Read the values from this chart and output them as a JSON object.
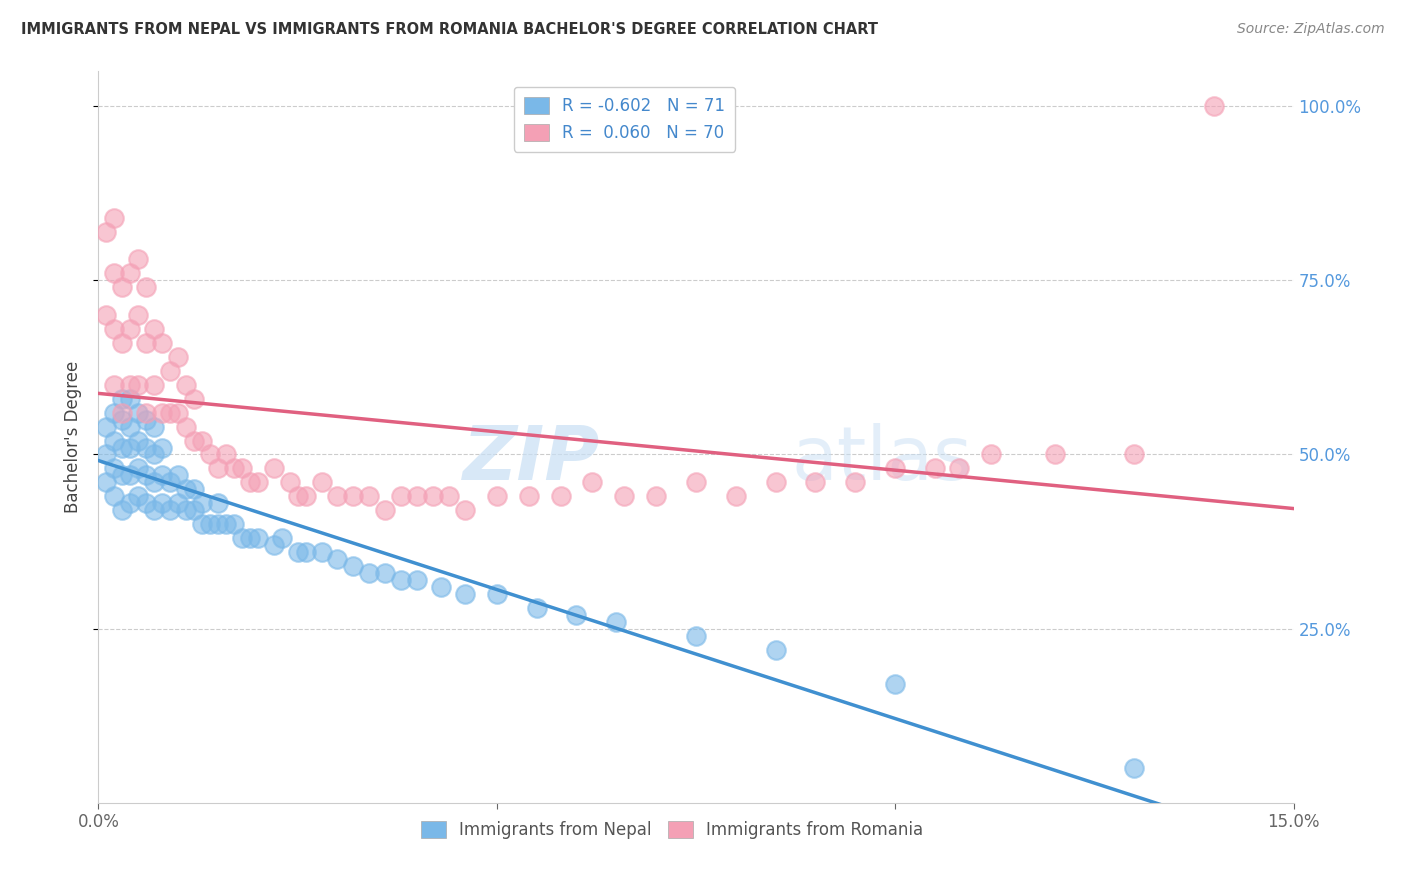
{
  "title": "IMMIGRANTS FROM NEPAL VS IMMIGRANTS FROM ROMANIA BACHELOR'S DEGREE CORRELATION CHART",
  "source": "Source: ZipAtlas.com",
  "ylabel": "Bachelor's Degree",
  "xlim": [
    0.0,
    0.15
  ],
  "ylim": [
    0.0,
    1.05
  ],
  "nepal_color": "#7AB8E8",
  "romania_color": "#F4A0B5",
  "nepal_R": "-0.602",
  "nepal_N": "71",
  "romania_R": "0.060",
  "romania_N": "70",
  "nepal_line_color": "#4090D0",
  "romania_line_color": "#E06080",
  "watermark_zip": "ZIP",
  "watermark_atlas": "atlas",
  "nepal_x": [
    0.001,
    0.001,
    0.001,
    0.002,
    0.002,
    0.002,
    0.002,
    0.003,
    0.003,
    0.003,
    0.003,
    0.003,
    0.004,
    0.004,
    0.004,
    0.004,
    0.004,
    0.005,
    0.005,
    0.005,
    0.005,
    0.006,
    0.006,
    0.006,
    0.006,
    0.007,
    0.007,
    0.007,
    0.007,
    0.008,
    0.008,
    0.008,
    0.009,
    0.009,
    0.01,
    0.01,
    0.011,
    0.011,
    0.012,
    0.012,
    0.013,
    0.013,
    0.014,
    0.015,
    0.015,
    0.016,
    0.017,
    0.018,
    0.019,
    0.02,
    0.022,
    0.023,
    0.025,
    0.026,
    0.028,
    0.03,
    0.032,
    0.034,
    0.036,
    0.038,
    0.04,
    0.043,
    0.046,
    0.05,
    0.055,
    0.06,
    0.065,
    0.075,
    0.085,
    0.1,
    0.13
  ],
  "nepal_y": [
    0.46,
    0.5,
    0.54,
    0.44,
    0.48,
    0.52,
    0.56,
    0.42,
    0.47,
    0.51,
    0.55,
    0.58,
    0.43,
    0.47,
    0.51,
    0.54,
    0.58,
    0.44,
    0.48,
    0.52,
    0.56,
    0.43,
    0.47,
    0.51,
    0.55,
    0.42,
    0.46,
    0.5,
    0.54,
    0.43,
    0.47,
    0.51,
    0.42,
    0.46,
    0.43,
    0.47,
    0.42,
    0.45,
    0.42,
    0.45,
    0.4,
    0.43,
    0.4,
    0.4,
    0.43,
    0.4,
    0.4,
    0.38,
    0.38,
    0.38,
    0.37,
    0.38,
    0.36,
    0.36,
    0.36,
    0.35,
    0.34,
    0.33,
    0.33,
    0.32,
    0.32,
    0.31,
    0.3,
    0.3,
    0.28,
    0.27,
    0.26,
    0.24,
    0.22,
    0.17,
    0.05
  ],
  "romania_x": [
    0.001,
    0.001,
    0.002,
    0.002,
    0.002,
    0.002,
    0.003,
    0.003,
    0.003,
    0.004,
    0.004,
    0.004,
    0.005,
    0.005,
    0.005,
    0.006,
    0.006,
    0.006,
    0.007,
    0.007,
    0.008,
    0.008,
    0.009,
    0.009,
    0.01,
    0.01,
    0.011,
    0.011,
    0.012,
    0.012,
    0.013,
    0.014,
    0.015,
    0.016,
    0.017,
    0.018,
    0.019,
    0.02,
    0.022,
    0.024,
    0.025,
    0.026,
    0.028,
    0.03,
    0.032,
    0.034,
    0.036,
    0.038,
    0.04,
    0.042,
    0.044,
    0.046,
    0.05,
    0.054,
    0.058,
    0.062,
    0.066,
    0.07,
    0.075,
    0.08,
    0.085,
    0.09,
    0.095,
    0.1,
    0.105,
    0.108,
    0.112,
    0.12,
    0.13,
    0.14
  ],
  "romania_y": [
    0.7,
    0.82,
    0.6,
    0.68,
    0.76,
    0.84,
    0.56,
    0.66,
    0.74,
    0.6,
    0.68,
    0.76,
    0.6,
    0.7,
    0.78,
    0.56,
    0.66,
    0.74,
    0.6,
    0.68,
    0.56,
    0.66,
    0.56,
    0.62,
    0.56,
    0.64,
    0.54,
    0.6,
    0.52,
    0.58,
    0.52,
    0.5,
    0.48,
    0.5,
    0.48,
    0.48,
    0.46,
    0.46,
    0.48,
    0.46,
    0.44,
    0.44,
    0.46,
    0.44,
    0.44,
    0.44,
    0.42,
    0.44,
    0.44,
    0.44,
    0.44,
    0.42,
    0.44,
    0.44,
    0.44,
    0.46,
    0.44,
    0.44,
    0.46,
    0.44,
    0.46,
    0.46,
    0.46,
    0.48,
    0.48,
    0.48,
    0.5,
    0.5,
    0.5,
    1.0
  ]
}
